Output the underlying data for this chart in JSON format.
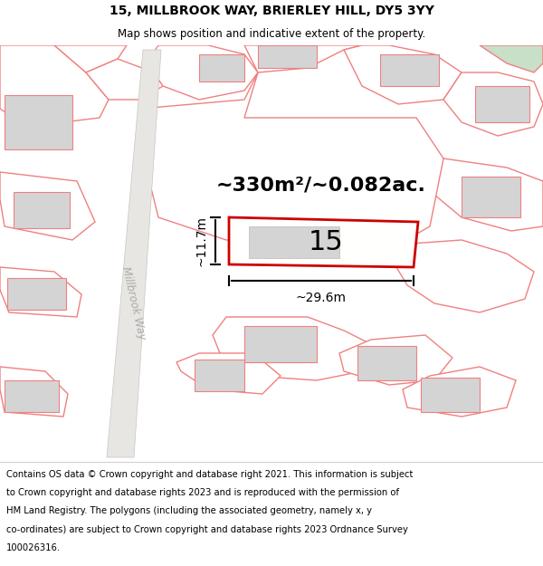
{
  "title_line1": "15, MILLBROOK WAY, BRIERLEY HILL, DY5 3YY",
  "title_line2": "Map shows position and indicative extent of the property.",
  "area_label": "~330m²/~0.082ac.",
  "number_label": "15",
  "dim_width": "~29.6m",
  "dim_height": "~11.7m",
  "street_label": "Millbrook Way",
  "footer_lines": [
    "Contains OS data © Crown copyright and database right 2021. This information is subject",
    "to Crown copyright and database rights 2023 and is reproduced with the permission of",
    "HM Land Registry. The polygons (including the associated geometry, namely x, y",
    "co-ordinates) are subject to Crown copyright and database rights 2023 Ordnance Survey",
    "100026316."
  ],
  "map_bg": "#f7f6f4",
  "plot_border_color": "#cc0000",
  "road_color": "#e8e6e3",
  "road_edge_color": "#c8c4c0",
  "building_color": "#d4d4d4",
  "boundary_color": "#f08080",
  "green_color": "#c8dfc8",
  "white_fill": "#ffffff",
  "title_fontsize": 10,
  "subtitle_fontsize": 8.5,
  "footer_fontsize": 7.2,
  "area_fontsize": 16,
  "number_fontsize": 22,
  "dim_fontsize": 10,
  "street_fontsize": 8.5
}
